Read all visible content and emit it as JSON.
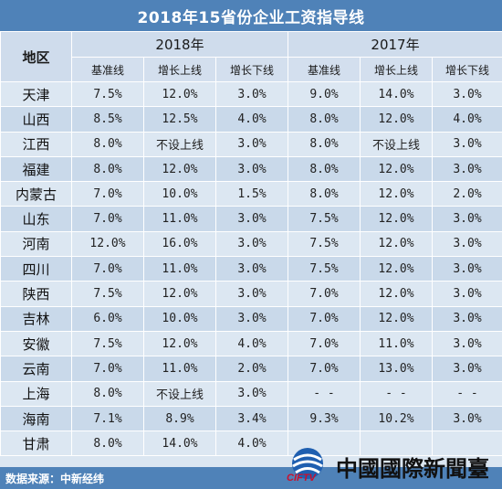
{
  "title": "2018年15省份企业工资指导线",
  "header": {
    "region_label": "地区",
    "year_2018": "2018年",
    "year_2017": "2017年",
    "sub": [
      "基准线",
      "增长上线",
      "增长下线",
      "基准线",
      "增长上线",
      "增长下线"
    ]
  },
  "rows": [
    {
      "region": "天津",
      "values": [
        "7.5%",
        "12.0%",
        "3.0%",
        "9.0%",
        "14.0%",
        "3.0%"
      ]
    },
    {
      "region": "山西",
      "values": [
        "8.5%",
        "12.5%",
        "4.0%",
        "8.0%",
        "12.0%",
        "4.0%"
      ]
    },
    {
      "region": "江西",
      "values": [
        "8.0%",
        "不设上线",
        "3.0%",
        "8.0%",
        "不设上线",
        "3.0%"
      ]
    },
    {
      "region": "福建",
      "values": [
        "8.0%",
        "12.0%",
        "3.0%",
        "8.0%",
        "12.0%",
        "3.0%"
      ]
    },
    {
      "region": "内蒙古",
      "values": [
        "7.0%",
        "10.0%",
        "1.5%",
        "8.0%",
        "12.0%",
        "2.0%"
      ]
    },
    {
      "region": "山东",
      "values": [
        "7.0%",
        "11.0%",
        "3.0%",
        "7.5%",
        "12.0%",
        "3.0%"
      ]
    },
    {
      "region": "河南",
      "values": [
        "12.0%",
        "16.0%",
        "3.0%",
        "7.5%",
        "12.0%",
        "3.0%"
      ]
    },
    {
      "region": "四川",
      "values": [
        "7.0%",
        "11.0%",
        "3.0%",
        "7.5%",
        "12.0%",
        "3.0%"
      ]
    },
    {
      "region": "陕西",
      "values": [
        "7.5%",
        "12.0%",
        "3.0%",
        "7.0%",
        "12.0%",
        "3.0%"
      ]
    },
    {
      "region": "吉林",
      "values": [
        "6.0%",
        "10.0%",
        "3.0%",
        "7.0%",
        "12.0%",
        "3.0%"
      ]
    },
    {
      "region": "安徽",
      "values": [
        "7.5%",
        "12.0%",
        "4.0%",
        "7.0%",
        "11.0%",
        "3.0%"
      ]
    },
    {
      "region": "云南",
      "values": [
        "7.0%",
        "11.0%",
        "2.0%",
        "7.0%",
        "13.0%",
        "3.0%"
      ]
    },
    {
      "region": "上海",
      "values": [
        "8.0%",
        "不设上线",
        "3.0%",
        "- -",
        "- -",
        "- -"
      ]
    },
    {
      "region": "海南",
      "values": [
        "7.1%",
        "8.9%",
        "3.4%",
        "9.3%",
        "10.2%",
        "3.0%"
      ]
    },
    {
      "region": "甘肃",
      "values": [
        "8.0%",
        "14.0%",
        "4.0%",
        "",
        "",
        ""
      ]
    }
  ],
  "footer": {
    "source": "数据来源：中新经纬"
  },
  "watermark": {
    "text": "中國國際新聞臺",
    "abbr": "CIFTV",
    "brand_color": "#1f5fb0",
    "accent_color": "#c8102e"
  },
  "colors": {
    "title_bg": "#4f82b8",
    "row_light": "#dce7f2",
    "row_dark": "#c9d9ea"
  }
}
